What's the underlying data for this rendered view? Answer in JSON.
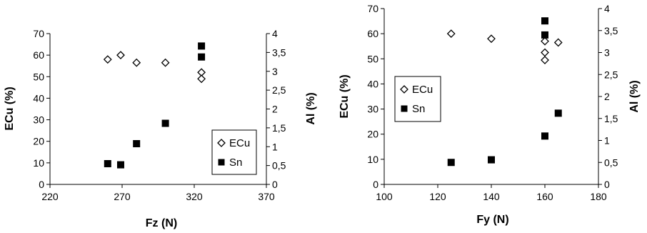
{
  "chart_data": [
    {
      "type": "scatter",
      "xlabel": "Fz (N)",
      "ylabel": "ECu (%)",
      "y2label": "Al (%)",
      "xlim": [
        220,
        370
      ],
      "ylim": [
        0,
        70
      ],
      "y2lim": [
        0,
        4
      ],
      "xticks": [
        "220",
        "270",
        "320",
        "370"
      ],
      "yticks": [
        "0",
        "10",
        "20",
        "30",
        "40",
        "50",
        "60",
        "70"
      ],
      "y2ticks": [
        "0",
        "0,5",
        "1",
        "1,5",
        "2",
        "2,5",
        "3",
        "3,5",
        "4"
      ],
      "legend": "bottom-right",
      "series": [
        {
          "name": "ECu",
          "axis": "left",
          "marker": "diamond-open",
          "x": [
            260,
            269,
            280,
            300,
            325,
            325
          ],
          "y": [
            58,
            60,
            56.5,
            56.5,
            52,
            49
          ]
        },
        {
          "name": "Sn",
          "axis": "right",
          "marker": "square-filled",
          "x": [
            260,
            269,
            280,
            300,
            325,
            325
          ],
          "y": [
            0.55,
            0.52,
            1.08,
            1.62,
            3.38,
            3.67
          ]
        }
      ]
    },
    {
      "type": "scatter",
      "xlabel": "Fy (N)",
      "ylabel": "ECu (%)",
      "y2label": "Al (%)",
      "xlim": [
        100,
        180
      ],
      "ylim": [
        0,
        70
      ],
      "y2lim": [
        0,
        4
      ],
      "xticks": [
        "100",
        "120",
        "140",
        "160",
        "180"
      ],
      "yticks": [
        "0",
        "10",
        "20",
        "30",
        "40",
        "50",
        "60",
        "70"
      ],
      "y2ticks": [
        "0",
        "0,5",
        "1",
        "1,5",
        "2",
        "2,5",
        "3",
        "3,5",
        "4"
      ],
      "legend": "middle-left",
      "series": [
        {
          "name": "ECu",
          "axis": "left",
          "marker": "diamond-open",
          "x": [
            125,
            140,
            160,
            160,
            160,
            165
          ],
          "y": [
            60,
            58,
            57,
            52.5,
            49.5,
            56.5
          ]
        },
        {
          "name": "Sn",
          "axis": "right",
          "marker": "square-filled",
          "x": [
            125,
            140,
            160,
            160,
            160,
            165
          ],
          "y": [
            0.5,
            0.56,
            1.1,
            3.4,
            3.72,
            1.62
          ]
        }
      ]
    }
  ]
}
